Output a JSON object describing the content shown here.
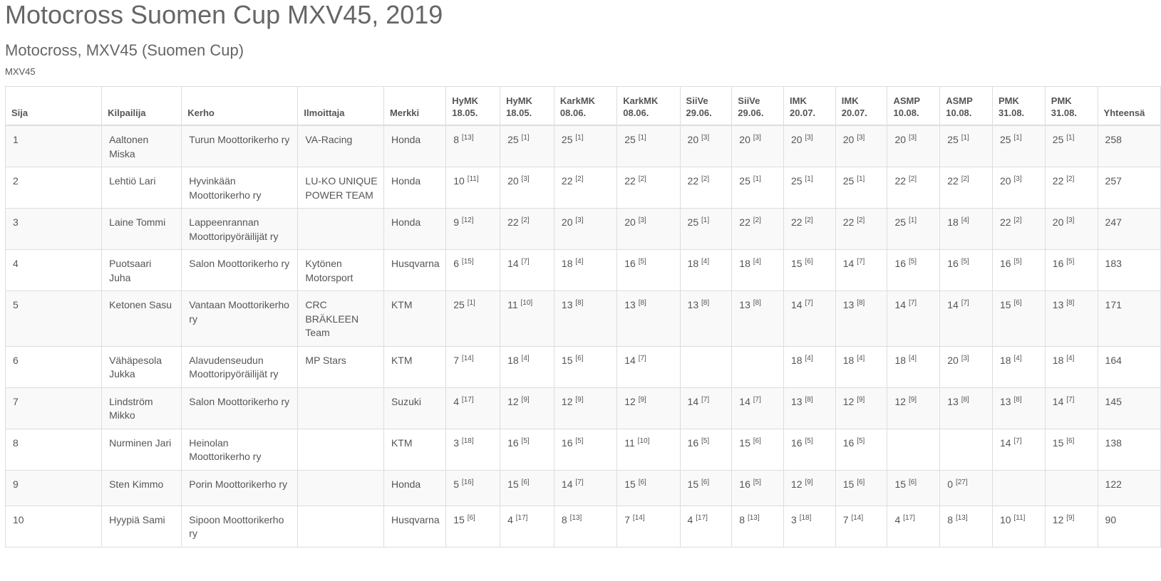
{
  "title": "Motocross Suomen Cup MXV45, 2019",
  "subtitle": "Motocross, MXV45 (Suomen Cup)",
  "class_label": "MXV45",
  "headers": {
    "rank": "Sija",
    "rider": "Kilpailija",
    "club": "Kerho",
    "entrant": "Ilmoittaja",
    "brand": "Merkki",
    "total": "Yhteensä",
    "events": [
      [
        "HyMK",
        "18.05."
      ],
      [
        "HyMK",
        "18.05."
      ],
      [
        "KarkMK",
        "08.06."
      ],
      [
        "KarkMK",
        "08.06."
      ],
      [
        "SiiVe",
        "29.06."
      ],
      [
        "SiiVe",
        "29.06."
      ],
      [
        "IMK",
        "20.07."
      ],
      [
        "IMK",
        "20.07."
      ],
      [
        "ASMP",
        "10.08."
      ],
      [
        "ASMP",
        "10.08."
      ],
      [
        "PMK",
        "31.08."
      ],
      [
        "PMK",
        "31.08."
      ]
    ]
  },
  "rows": [
    {
      "rank": "1",
      "rider": "Aaltonen Miska",
      "club": "Turun Moottorikerho ry",
      "entrant": "VA-Racing",
      "brand": "Honda",
      "results": [
        [
          "8",
          "[13]"
        ],
        [
          "25",
          "[1]"
        ],
        [
          "25",
          "[1]"
        ],
        [
          "25",
          "[1]"
        ],
        [
          "20",
          "[3]"
        ],
        [
          "20",
          "[3]"
        ],
        [
          "20",
          "[3]"
        ],
        [
          "20",
          "[3]"
        ],
        [
          "20",
          "[3]"
        ],
        [
          "25",
          "[1]"
        ],
        [
          "25",
          "[1]"
        ],
        [
          "25",
          "[1]"
        ]
      ],
      "total": "258"
    },
    {
      "rank": "2",
      "rider": "Lehtiö Lari",
      "club": "Hyvinkään Moottorikerho ry",
      "entrant": "LU-KO UNIQUE POWER TEAM",
      "brand": "Honda",
      "results": [
        [
          "10",
          "[11]"
        ],
        [
          "20",
          "[3]"
        ],
        [
          "22",
          "[2]"
        ],
        [
          "22",
          "[2]"
        ],
        [
          "22",
          "[2]"
        ],
        [
          "25",
          "[1]"
        ],
        [
          "25",
          "[1]"
        ],
        [
          "25",
          "[1]"
        ],
        [
          "22",
          "[2]"
        ],
        [
          "22",
          "[2]"
        ],
        [
          "20",
          "[3]"
        ],
        [
          "22",
          "[2]"
        ]
      ],
      "total": "257"
    },
    {
      "rank": "3",
      "rider": "Laine Tommi",
      "club": "Lappeenrannan Moottoripyöräilijät ry",
      "entrant": "",
      "brand": "Honda",
      "results": [
        [
          "9",
          "[12]"
        ],
        [
          "22",
          "[2]"
        ],
        [
          "20",
          "[3]"
        ],
        [
          "20",
          "[3]"
        ],
        [
          "25",
          "[1]"
        ],
        [
          "22",
          "[2]"
        ],
        [
          "22",
          "[2]"
        ],
        [
          "22",
          "[2]"
        ],
        [
          "25",
          "[1]"
        ],
        [
          "18",
          "[4]"
        ],
        [
          "22",
          "[2]"
        ],
        [
          "20",
          "[3]"
        ]
      ],
      "total": "247"
    },
    {
      "rank": "4",
      "rider": "Puotsaari Juha",
      "club": "Salon Moottorikerho ry",
      "entrant": "Kytönen Motorsport",
      "brand": "Husqvarna",
      "results": [
        [
          "6",
          "[15]"
        ],
        [
          "14",
          "[7]"
        ],
        [
          "18",
          "[4]"
        ],
        [
          "16",
          "[5]"
        ],
        [
          "18",
          "[4]"
        ],
        [
          "18",
          "[4]"
        ],
        [
          "15",
          "[6]"
        ],
        [
          "14",
          "[7]"
        ],
        [
          "16",
          "[5]"
        ],
        [
          "16",
          "[5]"
        ],
        [
          "16",
          "[5]"
        ],
        [
          "16",
          "[5]"
        ]
      ],
      "total": "183"
    },
    {
      "rank": "5",
      "rider": "Ketonen Sasu",
      "club": "Vantaan Moottorikerho ry",
      "entrant": "CRC BRÄKLEEN Team",
      "brand": "KTM",
      "results": [
        [
          "25",
          "[1]"
        ],
        [
          "11",
          "[10]"
        ],
        [
          "13",
          "[8]"
        ],
        [
          "13",
          "[8]"
        ],
        [
          "13",
          "[8]"
        ],
        [
          "13",
          "[8]"
        ],
        [
          "14",
          "[7]"
        ],
        [
          "13",
          "[8]"
        ],
        [
          "14",
          "[7]"
        ],
        [
          "14",
          "[7]"
        ],
        [
          "15",
          "[6]"
        ],
        [
          "13",
          "[8]"
        ]
      ],
      "total": "171"
    },
    {
      "rank": "6",
      "rider": "Vähäpesola Jukka",
      "club": "Alavudenseudun Moottoripyöräilijät ry",
      "entrant": "MP Stars",
      "brand": "KTM",
      "results": [
        [
          "7",
          "[14]"
        ],
        [
          "18",
          "[4]"
        ],
        [
          "15",
          "[6]"
        ],
        [
          "14",
          "[7]"
        ],
        [
          "",
          ""
        ],
        [
          "",
          ""
        ],
        [
          "18",
          "[4]"
        ],
        [
          "18",
          "[4]"
        ],
        [
          "18",
          "[4]"
        ],
        [
          "20",
          "[3]"
        ],
        [
          "18",
          "[4]"
        ],
        [
          "18",
          "[4]"
        ]
      ],
      "total": "164"
    },
    {
      "rank": "7",
      "rider": "Lindström Mikko",
      "club": "Salon Moottorikerho ry",
      "entrant": "",
      "brand": "Suzuki",
      "results": [
        [
          "4",
          "[17]"
        ],
        [
          "12",
          "[9]"
        ],
        [
          "12",
          "[9]"
        ],
        [
          "12",
          "[9]"
        ],
        [
          "14",
          "[7]"
        ],
        [
          "14",
          "[7]"
        ],
        [
          "13",
          "[8]"
        ],
        [
          "12",
          "[9]"
        ],
        [
          "12",
          "[9]"
        ],
        [
          "13",
          "[8]"
        ],
        [
          "13",
          "[8]"
        ],
        [
          "14",
          "[7]"
        ]
      ],
      "total": "145"
    },
    {
      "rank": "8",
      "rider": "Nurminen Jari",
      "club": "Heinolan Moottorikerho ry",
      "entrant": "",
      "brand": "KTM",
      "results": [
        [
          "3",
          "[18]"
        ],
        [
          "16",
          "[5]"
        ],
        [
          "16",
          "[5]"
        ],
        [
          "11",
          "[10]"
        ],
        [
          "16",
          "[5]"
        ],
        [
          "15",
          "[6]"
        ],
        [
          "16",
          "[5]"
        ],
        [
          "16",
          "[5]"
        ],
        [
          "",
          ""
        ],
        [
          "",
          ""
        ],
        [
          "14",
          "[7]"
        ],
        [
          "15",
          "[6]"
        ]
      ],
      "total": "138"
    },
    {
      "rank": "9",
      "rider": "Sten Kimmo",
      "club": "Porin Moottorikerho ry",
      "entrant": "",
      "brand": "Honda",
      "results": [
        [
          "5",
          "[16]"
        ],
        [
          "15",
          "[6]"
        ],
        [
          "14",
          "[7]"
        ],
        [
          "15",
          "[6]"
        ],
        [
          "15",
          "[6]"
        ],
        [
          "16",
          "[5]"
        ],
        [
          "12",
          "[9]"
        ],
        [
          "15",
          "[6]"
        ],
        [
          "15",
          "[6]"
        ],
        [
          "0",
          "[27]"
        ],
        [
          "",
          ""
        ],
        [
          "",
          ""
        ]
      ],
      "total": "122"
    },
    {
      "rank": "10",
      "rider": "Hyypiä Sami",
      "club": "Sipoon Moottorikerho ry",
      "entrant": "",
      "brand": "Husqvarna",
      "results": [
        [
          "15",
          "[6]"
        ],
        [
          "4",
          "[17]"
        ],
        [
          "8",
          "[13]"
        ],
        [
          "7",
          "[14]"
        ],
        [
          "4",
          "[17]"
        ],
        [
          "8",
          "[13]"
        ],
        [
          "3",
          "[18]"
        ],
        [
          "7",
          "[14]"
        ],
        [
          "4",
          "[17]"
        ],
        [
          "8",
          "[13]"
        ],
        [
          "10",
          "[11]"
        ],
        [
          "12",
          "[9]"
        ]
      ],
      "total": "90"
    }
  ]
}
